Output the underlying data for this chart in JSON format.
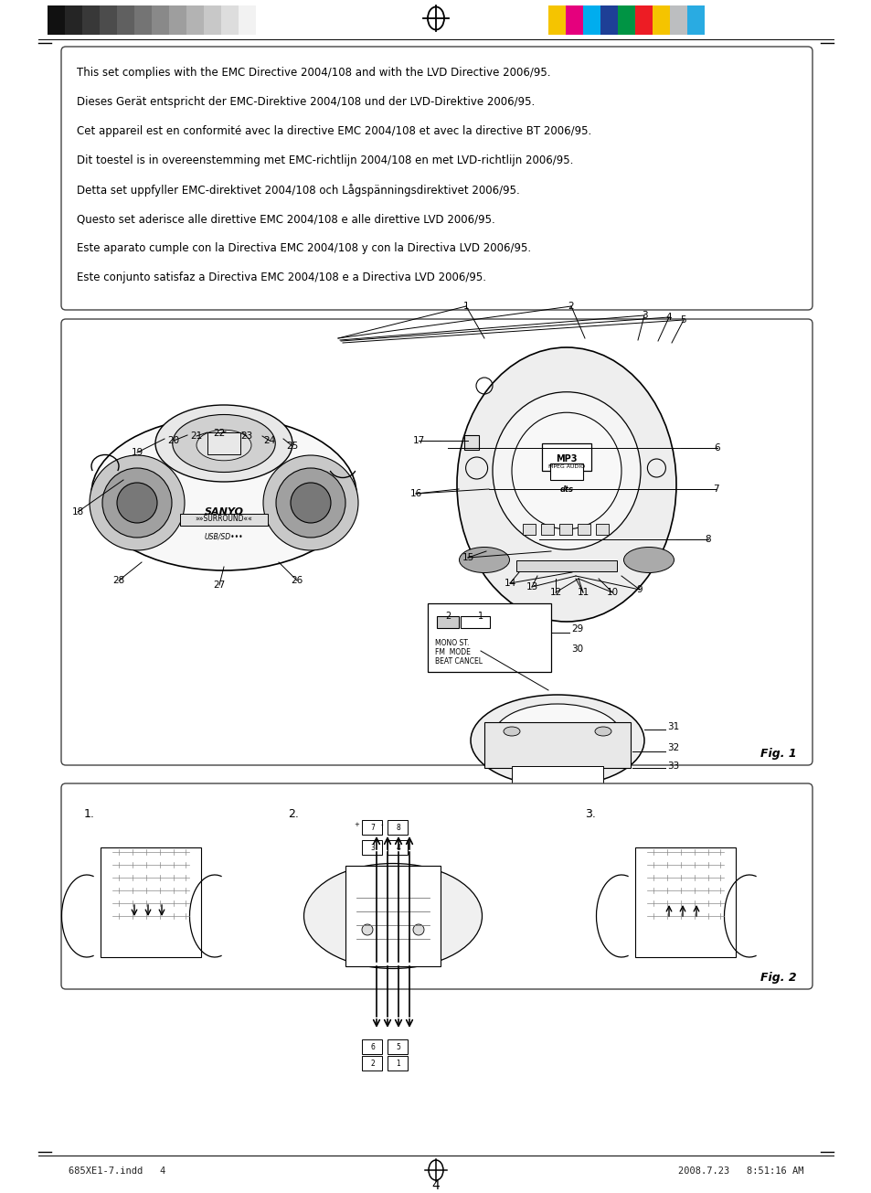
{
  "page_bg": "#ffffff",
  "header_bar_colors_gray": [
    "#111111",
    "#252525",
    "#383838",
    "#4c4c4c",
    "#606060",
    "#747474",
    "#898989",
    "#9e9e9e",
    "#b3b3b3",
    "#c8c8c8",
    "#dddddd",
    "#f2f2f2"
  ],
  "header_bar_colors_color": [
    "#f5c400",
    "#e5007d",
    "#00adee",
    "#1e3f96",
    "#009444",
    "#ed1c24",
    "#f5c400",
    "#bcbec0",
    "#29abe2"
  ],
  "text_lines_box1": [
    "This set complies with the EMC Directive 2004/108 and with the LVD Directive 2006/95.",
    "Dieses Gerät entspricht der EMC-Direktive 2004/108 und der LVD-Direktive 2006/95.",
    "Cet appareil est en conformité avec la directive EMC 2004/108 et avec la directive BT 2006/95.",
    "Dit toestel is in overeenstemming met EMC-richtlijn 2004/108 en met LVD-richtlijn 2006/95.",
    "Detta set uppfyller EMC-direktivet 2004/108 och Lågspänningsdirektivet 2006/95.",
    "Questo set aderisce alle direttive EMC 2004/108 e alle direttive LVD 2006/95.",
    "Este aparato cumple con la Directiva EMC 2004/108 y con la Directiva LVD 2006/95.",
    "Este conjunto satisfaz a Directiva EMC 2004/108 e a Directiva LVD 2006/95."
  ],
  "footer_text_left": "685XE1-7.indd   4",
  "footer_text_right": "2008.7.23   8:51:16 AM",
  "page_number": "4",
  "fig1_label": "Fig. 1",
  "fig2_label": "Fig. 2",
  "fig2_sublabels": [
    "1.",
    "2.",
    "3."
  ]
}
